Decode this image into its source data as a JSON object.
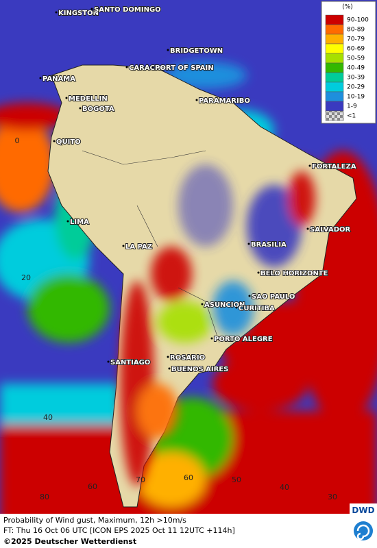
{
  "map": {
    "cities": [
      "KINGSTON",
      "SANTO DOMINGO",
      "BRIDGETOWN",
      "CARACAS",
      "PORT OF SPAIN",
      "PANAMA",
      "MEDELLIN",
      "BOGOTA",
      "PARAMARIBO",
      "QUITO",
      "FORTALEZA",
      "LIMA",
      "SALVADOR",
      "LA PAZ",
      "BRASILIA",
      "BELO HORIZONTE",
      "ASUNCION",
      "SAO PAULO",
      "CURITIBA",
      "PORTO ALEGRE",
      "ROSARIO",
      "SANTIAGO",
      "BUENOS AIRES"
    ],
    "grid_labels": [
      "0",
      "20",
      "40",
      "80",
      "60",
      "70",
      "60",
      "50",
      "40",
      "30"
    ],
    "legend": {
      "title": "(%)",
      "items": [
        {
          "label": "90-100",
          "color": "#cc0000"
        },
        {
          "label": "80-89",
          "color": "#ff6a00"
        },
        {
          "label": "70-79",
          "color": "#ffb000"
        },
        {
          "label": "60-69",
          "color": "#ffff00"
        },
        {
          "label": "50-59",
          "color": "#a6e000"
        },
        {
          "label": "40-49",
          "color": "#33b800"
        },
        {
          "label": "30-39",
          "color": "#00cc99"
        },
        {
          "label": "20-29",
          "color": "#00ccdd"
        },
        {
          "label": "10-19",
          "color": "#1e8fdd"
        },
        {
          "label": "1-9",
          "color": "#3a3abf"
        },
        {
          "label": "<1",
          "color": "#b0b0b0"
        }
      ]
    }
  },
  "footer": {
    "line1": "Probability of Wind gust, Maximum, 12h >10m/s",
    "line2": "FT: Thu 16 Oct 06 UTC [ICON EPS 2025 Oct 11 12UTC +114h]",
    "line3": "©2025 Deutscher Wetterdienst",
    "logo": "DWD"
  }
}
